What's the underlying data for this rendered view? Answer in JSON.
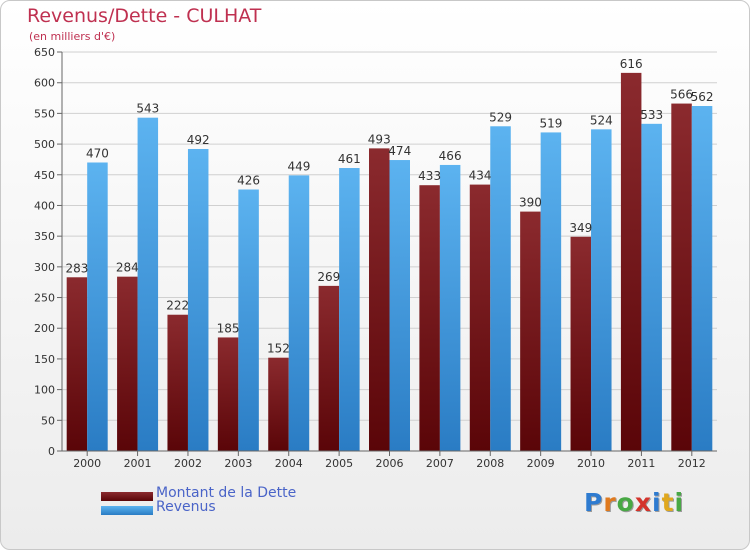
{
  "header": {
    "title": "Revenus/Dette - CULHAT",
    "subtitle": "(en milliers d'€)"
  },
  "chart_data": {
    "type": "bar",
    "title": "Revenus/Dette - CULHAT",
    "subtitle": "(en milliers d'€)",
    "categories": [
      "2000",
      "2001",
      "2002",
      "2003",
      "2004",
      "2005",
      "2006",
      "2007",
      "2008",
      "2009",
      "2010",
      "2011",
      "2012"
    ],
    "series": [
      {
        "name": "Montant de la Dette",
        "color": "#7a1418",
        "values": [
          283,
          284,
          222,
          185,
          152,
          269,
          493,
          433,
          434,
          390,
          349,
          616,
          566
        ]
      },
      {
        "name": "Revenus",
        "color": "#3f9ee6",
        "values": [
          470,
          543,
          492,
          426,
          449,
          461,
          474,
          466,
          529,
          519,
          524,
          533,
          562
        ]
      }
    ],
    "ylim": [
      0,
      650
    ],
    "yticks": [
      0,
      50,
      100,
      150,
      200,
      250,
      300,
      350,
      400,
      450,
      500,
      550,
      600,
      650
    ],
    "grid": true,
    "legend_position": "bottom-left"
  },
  "legend": {
    "items": [
      {
        "label": "Montant de la Dette",
        "color": "#7a1418"
      },
      {
        "label": "Revenus",
        "color": "#3f9ee6"
      }
    ]
  },
  "logo": {
    "letters": [
      "P",
      "r",
      "o",
      "x",
      "i",
      "t",
      "i"
    ],
    "colors": [
      "#2e7bd0",
      "#e07a1e",
      "#48a844",
      "#d4342c",
      "#2e7bd0",
      "#e0a81e",
      "#48a844"
    ]
  }
}
